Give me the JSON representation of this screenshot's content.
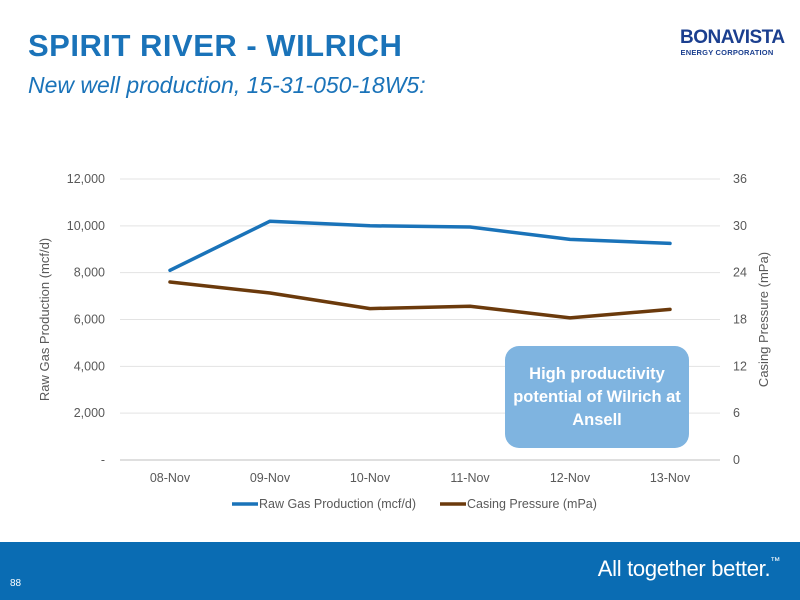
{
  "slide": {
    "title": "SPIRIT RIVER - WILRICH",
    "subtitle": "New well production, 15-31-050-18W5:",
    "logo_main": "BONAVISTA",
    "logo_sub": "ENERGY CORPORATION",
    "callout": "High productivity potential of Wilrich at Ansell",
    "page_number": "88",
    "tagline": "All together better.",
    "tagline_mark": "™"
  },
  "colors": {
    "title": "#1a73b9",
    "gas": "#1a73b9",
    "pressure": "#6b3a0c",
    "callout": "#7fb4e0",
    "footer": "#0a6cb3"
  },
  "chart_data": {
    "type": "line",
    "categories": [
      "08-Nov",
      "09-Nov",
      "10-Nov",
      "11-Nov",
      "12-Nov",
      "13-Nov"
    ],
    "series": [
      {
        "name": "Raw Gas Production (mcf/d)",
        "axis": "left",
        "values": [
          8100,
          10200,
          10000,
          9950,
          9420,
          9250
        ]
      },
      {
        "name": "Casing Pressure (mPa)",
        "axis": "right",
        "values": [
          22.8,
          21.4,
          19.4,
          19.7,
          18.2,
          19.3
        ]
      }
    ],
    "ylabel": "Raw Gas Production (mcf/d)",
    "y2label": "Casing Pressure (mPa)",
    "ylim": [
      0,
      12000
    ],
    "y2lim": [
      0,
      36
    ],
    "yticks": [
      "-",
      "2,000",
      "4,000",
      "6,000",
      "8,000",
      "10,000",
      "12,000"
    ],
    "y2ticks": [
      "0",
      "6",
      "12",
      "18",
      "24",
      "30",
      "36"
    ],
    "grid": true,
    "legend": "bottom"
  }
}
